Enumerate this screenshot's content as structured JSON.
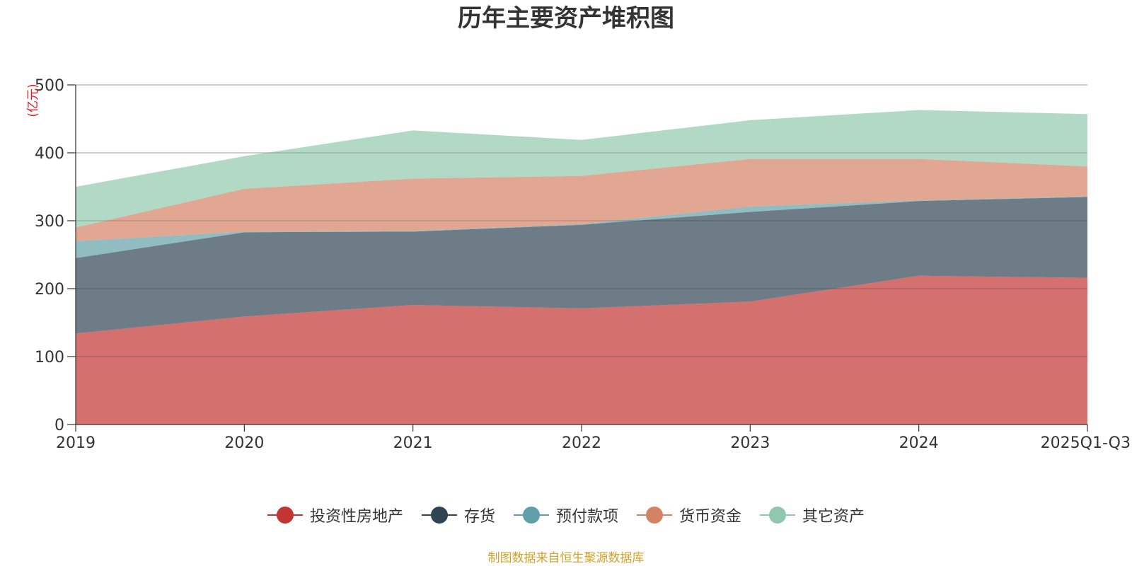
{
  "chart_data": {
    "type": "area",
    "stacked": true,
    "title": "历年主要资产堆积图",
    "unit_label": "(亿元)",
    "categories": [
      "2019",
      "2020",
      "2021",
      "2022",
      "2023",
      "2024",
      "2025Q1-Q3"
    ],
    "ylim": [
      0,
      500
    ],
    "yticks": [
      0,
      100,
      200,
      300,
      400,
      500
    ],
    "grid": true,
    "legend_position": "bottom-center",
    "series": [
      {
        "name": "投资性房地产",
        "color": "#c23531",
        "values": [
          134,
          159,
          176,
          171,
          181,
          219,
          216
        ]
      },
      {
        "name": "存货",
        "color": "#2f4554",
        "values": [
          111,
          124,
          108,
          123,
          132,
          110,
          119
        ]
      },
      {
        "name": "预付款项",
        "color": "#61a0a8",
        "values": [
          25,
          1,
          1,
          1,
          8,
          1,
          1
        ]
      },
      {
        "name": "货币资金",
        "color": "#d48265",
        "values": [
          20,
          63,
          77,
          71,
          70,
          61,
          44
        ]
      },
      {
        "name": "其它资产",
        "color": "#91c7ae",
        "values": [
          60,
          48,
          71,
          53,
          57,
          72,
          77
        ]
      }
    ],
    "source_note": "制图数据来自恒生聚源数据库"
  }
}
